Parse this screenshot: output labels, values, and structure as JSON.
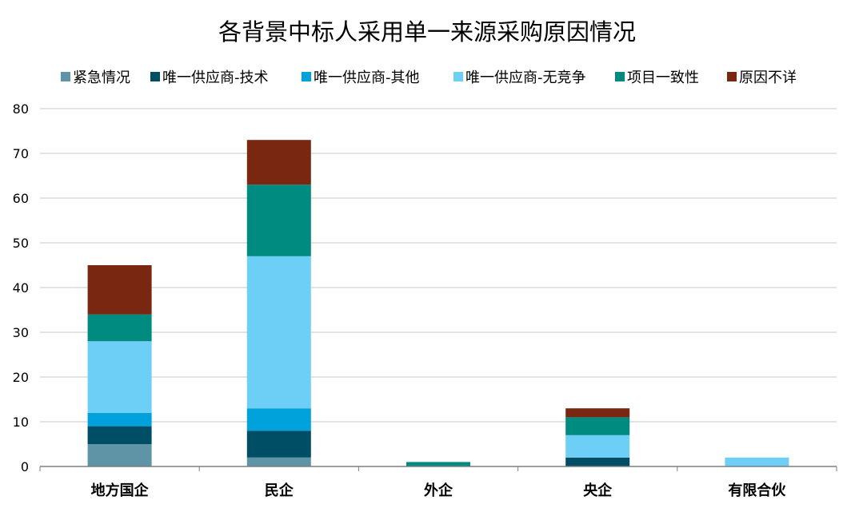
{
  "chart_data": {
    "type": "bar",
    "stacked": true,
    "title": "各背景中标人采用单一来源采购原因情况",
    "xlabel": "",
    "ylabel": "",
    "categories": [
      "地方国企",
      "民企",
      "外企",
      "央企",
      "有限合伙"
    ],
    "ylim": [
      0,
      80
    ],
    "yticks": [
      0,
      10,
      20,
      30,
      40,
      50,
      60,
      70,
      80
    ],
    "grid": true,
    "legend_position": "top",
    "series": [
      {
        "name": "紧急情况",
        "color": "#5F93A6",
        "values": [
          5,
          2,
          0,
          0,
          0
        ]
      },
      {
        "name": "唯一供应商-技术",
        "color": "#004D66",
        "values": [
          4,
          6,
          0,
          2,
          0
        ]
      },
      {
        "name": "唯一供应商-其他",
        "color": "#00A2DB",
        "values": [
          3,
          5,
          0,
          0,
          0
        ]
      },
      {
        "name": "唯一供应商-无竞争",
        "color": "#6ECFF6",
        "values": [
          16,
          34,
          0,
          5,
          2
        ]
      },
      {
        "name": "项目一致性",
        "color": "#008B80",
        "values": [
          6,
          16,
          1,
          4,
          0
        ]
      },
      {
        "name": "原因不详",
        "color": "#7A2712",
        "values": [
          11,
          10,
          0,
          2,
          0
        ]
      }
    ]
  }
}
